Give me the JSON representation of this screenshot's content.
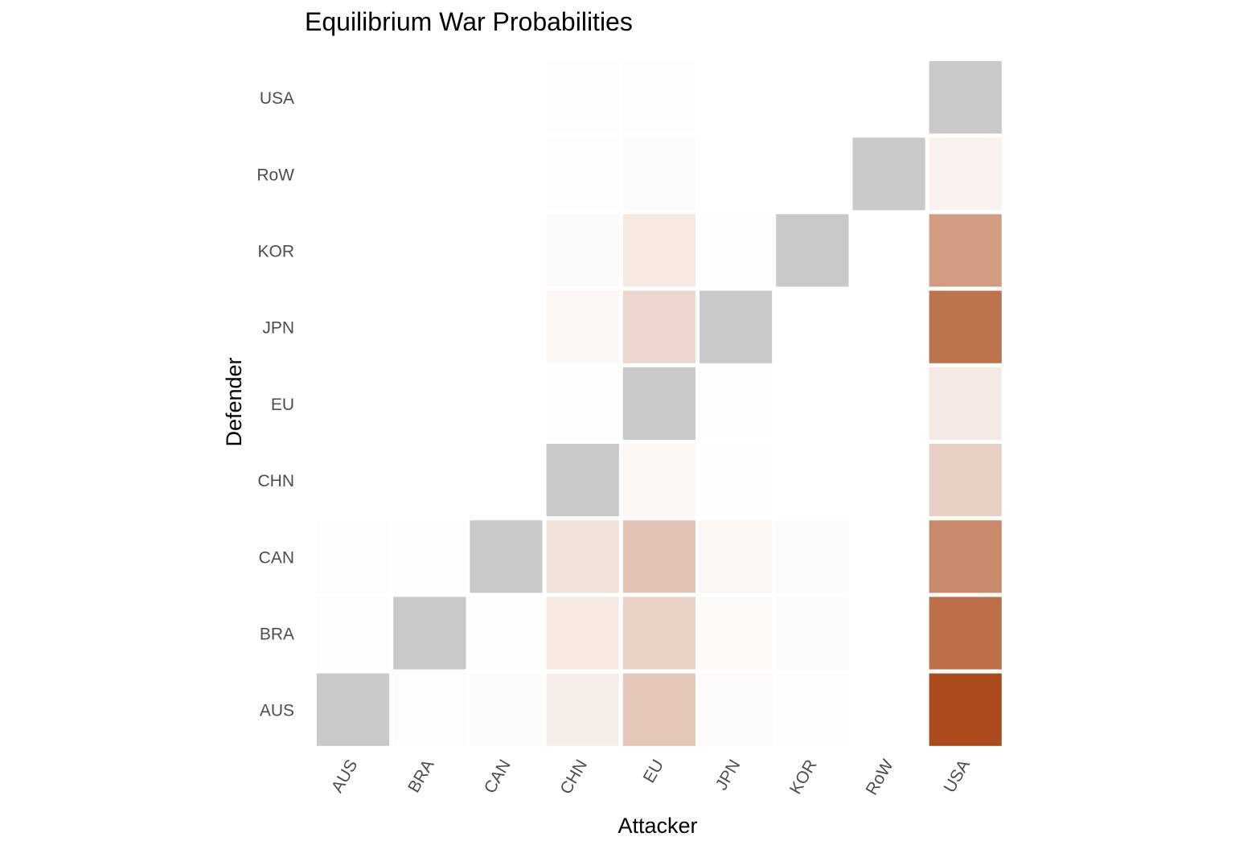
{
  "chart_data": {
    "type": "heatmap",
    "title": "Equilibrium War Probabilities",
    "xlabel": "Attacker",
    "ylabel": "Defender",
    "x_categories": [
      "AUS",
      "BRA",
      "CAN",
      "CHN",
      "EU",
      "JPN",
      "KOR",
      "RoW",
      "USA"
    ],
    "y_categories": [
      "AUS",
      "BRA",
      "CAN",
      "CHN",
      "EU",
      "JPN",
      "KOR",
      "RoW",
      "USA"
    ],
    "diagonal_color": "#c9c9c9",
    "color_low": "#ffffff",
    "color_high": "#ab4b1c",
    "legend": "none",
    "cells": [
      {
        "attacker": "AUS",
        "defender": "AUS",
        "value": null
      },
      {
        "attacker": "BRA",
        "defender": "AUS",
        "value": 0.01
      },
      {
        "attacker": "CAN",
        "defender": "AUS",
        "value": 0.02
      },
      {
        "attacker": "CHN",
        "defender": "AUS",
        "value": 0.1
      },
      {
        "attacker": "EU",
        "defender": "AUS",
        "value": 0.31
      },
      {
        "attacker": "JPN",
        "defender": "AUS",
        "value": 0.02
      },
      {
        "attacker": "KOR",
        "defender": "AUS",
        "value": 0.01
      },
      {
        "attacker": "RoW",
        "defender": "AUS",
        "value": 0
      },
      {
        "attacker": "USA",
        "defender": "AUS",
        "value": 1.0
      },
      {
        "attacker": "AUS",
        "defender": "BRA",
        "value": 0.01
      },
      {
        "attacker": "BRA",
        "defender": "BRA",
        "value": null
      },
      {
        "attacker": "CAN",
        "defender": "BRA",
        "value": 0.01
      },
      {
        "attacker": "CHN",
        "defender": "BRA",
        "value": 0.13
      },
      {
        "attacker": "EU",
        "defender": "BRA",
        "value": 0.25
      },
      {
        "attacker": "JPN",
        "defender": "BRA",
        "value": 0.04
      },
      {
        "attacker": "KOR",
        "defender": "BRA",
        "value": 0.02
      },
      {
        "attacker": "RoW",
        "defender": "BRA",
        "value": 0
      },
      {
        "attacker": "USA",
        "defender": "BRA",
        "value": 0.8
      },
      {
        "attacker": "AUS",
        "defender": "CAN",
        "value": 0.01
      },
      {
        "attacker": "BRA",
        "defender": "CAN",
        "value": 0.005
      },
      {
        "attacker": "CAN",
        "defender": "CAN",
        "value": null
      },
      {
        "attacker": "CHN",
        "defender": "CAN",
        "value": 0.16
      },
      {
        "attacker": "EU",
        "defender": "CAN",
        "value": 0.33
      },
      {
        "attacker": "JPN",
        "defender": "CAN",
        "value": 0.05
      },
      {
        "attacker": "KOR",
        "defender": "CAN",
        "value": 0.02
      },
      {
        "attacker": "RoW",
        "defender": "CAN",
        "value": 0
      },
      {
        "attacker": "USA",
        "defender": "CAN",
        "value": 0.65
      },
      {
        "attacker": "AUS",
        "defender": "CHN",
        "value": 0
      },
      {
        "attacker": "BRA",
        "defender": "CHN",
        "value": 0
      },
      {
        "attacker": "CAN",
        "defender": "CHN",
        "value": 0
      },
      {
        "attacker": "CHN",
        "defender": "CHN",
        "value": null
      },
      {
        "attacker": "EU",
        "defender": "CHN",
        "value": 0.05
      },
      {
        "attacker": "JPN",
        "defender": "CHN",
        "value": 0.005
      },
      {
        "attacker": "KOR",
        "defender": "CHN",
        "value": 0
      },
      {
        "attacker": "RoW",
        "defender": "CHN",
        "value": 0
      },
      {
        "attacker": "USA",
        "defender": "CHN",
        "value": 0.26
      },
      {
        "attacker": "AUS",
        "defender": "EU",
        "value": 0
      },
      {
        "attacker": "BRA",
        "defender": "EU",
        "value": 0
      },
      {
        "attacker": "CAN",
        "defender": "EU",
        "value": 0
      },
      {
        "attacker": "CHN",
        "defender": "EU",
        "value": 0.01
      },
      {
        "attacker": "EU",
        "defender": "EU",
        "value": null
      },
      {
        "attacker": "JPN",
        "defender": "EU",
        "value": 0.005
      },
      {
        "attacker": "KOR",
        "defender": "EU",
        "value": 0
      },
      {
        "attacker": "RoW",
        "defender": "EU",
        "value": 0
      },
      {
        "attacker": "USA",
        "defender": "EU",
        "value": 0.12
      },
      {
        "attacker": "AUS",
        "defender": "JPN",
        "value": 0
      },
      {
        "attacker": "BRA",
        "defender": "JPN",
        "value": 0
      },
      {
        "attacker": "CAN",
        "defender": "JPN",
        "value": 0
      },
      {
        "attacker": "CHN",
        "defender": "JPN",
        "value": 0.05
      },
      {
        "attacker": "EU",
        "defender": "JPN",
        "value": 0.22
      },
      {
        "attacker": "JPN",
        "defender": "JPN",
        "value": null
      },
      {
        "attacker": "KOR",
        "defender": "JPN",
        "value": 0
      },
      {
        "attacker": "RoW",
        "defender": "JPN",
        "value": 0
      },
      {
        "attacker": "USA",
        "defender": "JPN",
        "value": 0.78
      },
      {
        "attacker": "AUS",
        "defender": "KOR",
        "value": 0
      },
      {
        "attacker": "BRA",
        "defender": "KOR",
        "value": 0
      },
      {
        "attacker": "CAN",
        "defender": "KOR",
        "value": 0
      },
      {
        "attacker": "CHN",
        "defender": "KOR",
        "value": 0.03
      },
      {
        "attacker": "EU",
        "defender": "KOR",
        "value": 0.13
      },
      {
        "attacker": "JPN",
        "defender": "KOR",
        "value": 0.005
      },
      {
        "attacker": "KOR",
        "defender": "KOR",
        "value": null
      },
      {
        "attacker": "RoW",
        "defender": "KOR",
        "value": 0
      },
      {
        "attacker": "USA",
        "defender": "KOR",
        "value": 0.55
      },
      {
        "attacker": "AUS",
        "defender": "RoW",
        "value": 0
      },
      {
        "attacker": "BRA",
        "defender": "RoW",
        "value": 0
      },
      {
        "attacker": "CAN",
        "defender": "RoW",
        "value": 0
      },
      {
        "attacker": "CHN",
        "defender": "RoW",
        "value": 0.01
      },
      {
        "attacker": "EU",
        "defender": "RoW",
        "value": 0.02
      },
      {
        "attacker": "JPN",
        "defender": "RoW",
        "value": 0
      },
      {
        "attacker": "KOR",
        "defender": "RoW",
        "value": 0
      },
      {
        "attacker": "RoW",
        "defender": "RoW",
        "value": null
      },
      {
        "attacker": "USA",
        "defender": "RoW",
        "value": 0.08
      },
      {
        "attacker": "AUS",
        "defender": "USA",
        "value": 0
      },
      {
        "attacker": "BRA",
        "defender": "USA",
        "value": 0
      },
      {
        "attacker": "CAN",
        "defender": "USA",
        "value": 0
      },
      {
        "attacker": "CHN",
        "defender": "USA",
        "value": 0.01
      },
      {
        "attacker": "EU",
        "defender": "USA",
        "value": 0.01
      },
      {
        "attacker": "JPN",
        "defender": "USA",
        "value": 0
      },
      {
        "attacker": "KOR",
        "defender": "USA",
        "value": 0
      },
      {
        "attacker": "RoW",
        "defender": "USA",
        "value": 0
      },
      {
        "attacker": "USA",
        "defender": "USA",
        "value": null
      }
    ]
  }
}
